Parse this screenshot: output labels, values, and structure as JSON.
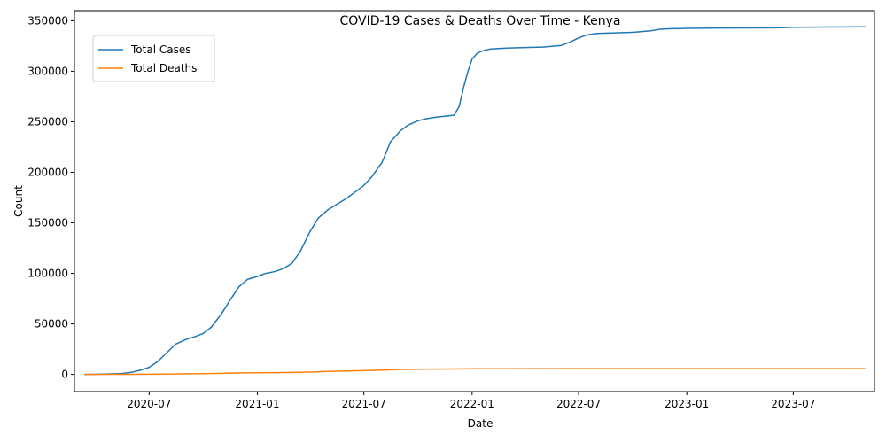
{
  "chart_data": {
    "type": "line",
    "title": "COVID-19 Cases & Deaths Over Time - Kenya",
    "xlabel": "Date",
    "ylabel": "Count",
    "xlim": [
      "2020-02-25",
      "2023-11-16"
    ],
    "ylim": [
      -17000,
      360000
    ],
    "x_ticks": [
      "2020-07-01",
      "2021-01-01",
      "2021-07-01",
      "2022-01-01",
      "2022-07-01",
      "2023-01-01",
      "2023-07-01"
    ],
    "x_tick_labels": [
      "2020-07",
      "2021-01",
      "2021-07",
      "2022-01",
      "2022-07",
      "2023-01",
      "2023-07"
    ],
    "y_ticks": [
      0,
      50000,
      100000,
      150000,
      200000,
      250000,
      300000,
      350000
    ],
    "y_tick_labels": [
      "0",
      "50000",
      "100000",
      "150000",
      "200000",
      "250000",
      "300000",
      "350000"
    ],
    "legend_position": "upper-left",
    "series": [
      {
        "name": "Total Cases",
        "color": "#1f77b4",
        "points": [
          [
            "2020-03-13",
            1
          ],
          [
            "2020-04-15",
            250
          ],
          [
            "2020-05-15",
            900
          ],
          [
            "2020-06-01",
            2000
          ],
          [
            "2020-06-15",
            4000
          ],
          [
            "2020-07-01",
            7000
          ],
          [
            "2020-07-15",
            12500
          ],
          [
            "2020-08-01",
            22000
          ],
          [
            "2020-08-15",
            30000
          ],
          [
            "2020-09-01",
            34500
          ],
          [
            "2020-09-15",
            37000
          ],
          [
            "2020-10-01",
            40500
          ],
          [
            "2020-10-15",
            47000
          ],
          [
            "2020-11-01",
            60000
          ],
          [
            "2020-11-15",
            73000
          ],
          [
            "2020-12-01",
            87000
          ],
          [
            "2020-12-15",
            94000
          ],
          [
            "2021-01-01",
            97000
          ],
          [
            "2021-01-15",
            100000
          ],
          [
            "2021-02-01",
            102000
          ],
          [
            "2021-02-15",
            105000
          ],
          [
            "2021-03-01",
            110000
          ],
          [
            "2021-03-15",
            122000
          ],
          [
            "2021-04-01",
            142000
          ],
          [
            "2021-04-15",
            155000
          ],
          [
            "2021-05-01",
            163000
          ],
          [
            "2021-05-15",
            168000
          ],
          [
            "2021-06-01",
            174000
          ],
          [
            "2021-06-15",
            180000
          ],
          [
            "2021-07-01",
            187000
          ],
          [
            "2021-07-15",
            196000
          ],
          [
            "2021-08-01",
            210000
          ],
          [
            "2021-08-15",
            230000
          ],
          [
            "2021-09-01",
            241000
          ],
          [
            "2021-09-15",
            247000
          ],
          [
            "2021-10-01",
            251000
          ],
          [
            "2021-10-15",
            253000
          ],
          [
            "2021-11-01",
            254500
          ],
          [
            "2021-11-15",
            255500
          ],
          [
            "2021-12-01",
            256500
          ],
          [
            "2021-12-10",
            265000
          ],
          [
            "2021-12-18",
            285000
          ],
          [
            "2021-12-25",
            300000
          ],
          [
            "2022-01-01",
            312000
          ],
          [
            "2022-01-10",
            318000
          ],
          [
            "2022-01-20",
            320500
          ],
          [
            "2022-02-01",
            322000
          ],
          [
            "2022-03-01",
            323000
          ],
          [
            "2022-04-01",
            323500
          ],
          [
            "2022-05-01",
            324000
          ],
          [
            "2022-06-01",
            325500
          ],
          [
            "2022-06-15",
            328500
          ],
          [
            "2022-07-01",
            333000
          ],
          [
            "2022-07-15",
            336000
          ],
          [
            "2022-08-01",
            337500
          ],
          [
            "2022-09-01",
            338000
          ],
          [
            "2022-10-01",
            338500
          ],
          [
            "2022-11-01",
            340000
          ],
          [
            "2022-11-15",
            341500
          ],
          [
            "2022-12-01",
            342000
          ],
          [
            "2023-01-01",
            342500
          ],
          [
            "2023-03-01",
            342800
          ],
          [
            "2023-06-01",
            343000
          ],
          [
            "2023-07-01",
            343500
          ],
          [
            "2023-09-01",
            343800
          ],
          [
            "2023-11-01",
            343955
          ]
        ]
      },
      {
        "name": "Total Deaths",
        "color": "#ff7f0e",
        "points": [
          [
            "2020-03-13",
            0
          ],
          [
            "2020-06-01",
            70
          ],
          [
            "2020-07-01",
            150
          ],
          [
            "2020-08-01",
            380
          ],
          [
            "2020-09-01",
            580
          ],
          [
            "2020-10-01",
            750
          ],
          [
            "2020-11-01",
            1050
          ],
          [
            "2020-12-01",
            1500
          ],
          [
            "2021-01-01",
            1700
          ],
          [
            "2021-02-01",
            1800
          ],
          [
            "2021-03-01",
            1900
          ],
          [
            "2021-04-01",
            2300
          ],
          [
            "2021-05-01",
            2900
          ],
          [
            "2021-06-01",
            3400
          ],
          [
            "2021-07-01",
            3700
          ],
          [
            "2021-08-01",
            4200
          ],
          [
            "2021-09-01",
            4900
          ],
          [
            "2021-10-01",
            5150
          ],
          [
            "2021-11-01",
            5250
          ],
          [
            "2021-12-01",
            5330
          ],
          [
            "2022-01-01",
            5500
          ],
          [
            "2022-02-01",
            5620
          ],
          [
            "2022-03-01",
            5640
          ],
          [
            "2022-07-01",
            5670
          ],
          [
            "2023-01-01",
            5685
          ],
          [
            "2023-07-01",
            5689
          ],
          [
            "2023-11-01",
            5689
          ]
        ]
      }
    ]
  }
}
